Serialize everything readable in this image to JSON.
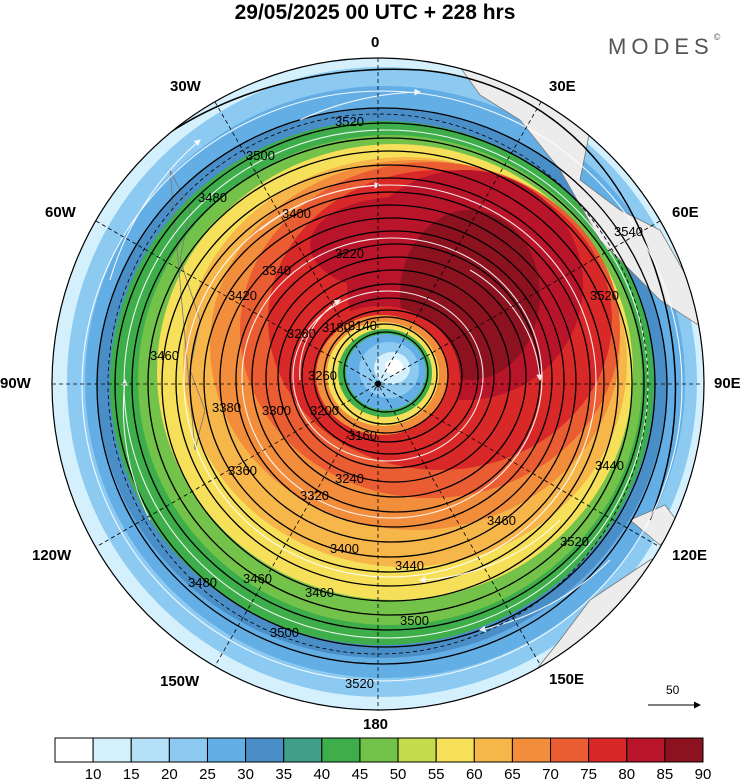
{
  "title": "29/05/2025  00 UTC  + 228 hrs",
  "brand": {
    "name": "MODES",
    "mark": "©"
  },
  "longitude_labels": {
    "n": "0",
    "ne": "30E",
    "ene": "60E",
    "e": "90E",
    "ese": "120E",
    "se": "150E",
    "s": "180",
    "sw": "150W",
    "wsw": "120W",
    "w": "90W",
    "wnw": "60W",
    "nw": "30W"
  },
  "reference_vector": {
    "value": "50"
  },
  "contour_labels": [
    "3520",
    "3500",
    "3480",
    "3460",
    "3440",
    "3420",
    "3400",
    "3380",
    "3360",
    "3340",
    "3320",
    "3300",
    "3280",
    "3260",
    "3240",
    "3220",
    "3200",
    "3180",
    "3160",
    "3140",
    "3540"
  ],
  "colorbar": {
    "labels": [
      "10",
      "15",
      "20",
      "25",
      "30",
      "35",
      "40",
      "45",
      "50",
      "55",
      "60",
      "65",
      "70",
      "75",
      "80",
      "85",
      "90"
    ],
    "colors": [
      "#ffffff",
      "#d4f0fc",
      "#b4e0f8",
      "#8ccaf2",
      "#64aee6",
      "#4a8ec8",
      "#3f9f8a",
      "#3dae4a",
      "#73c24a",
      "#c4dc4c",
      "#f6e05a",
      "#f6b64a",
      "#f28d3c",
      "#ea5c32",
      "#d92828",
      "#b8152a",
      "#8c1220"
    ]
  }
}
